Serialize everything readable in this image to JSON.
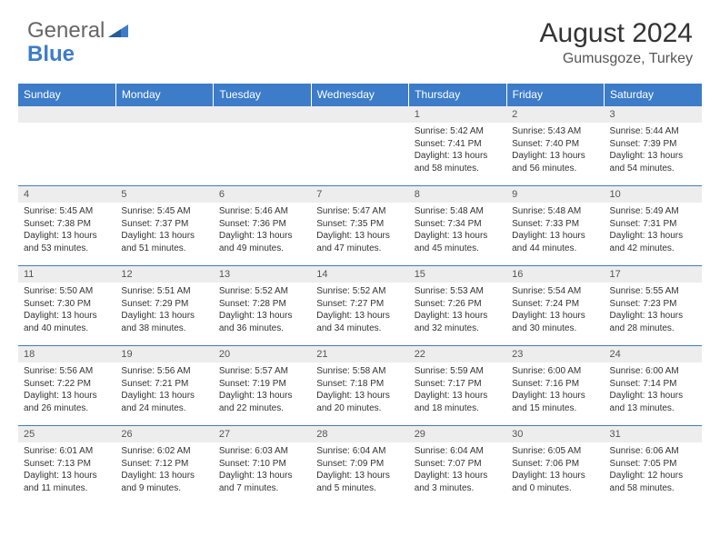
{
  "logo": {
    "general": "General",
    "blue": "Blue"
  },
  "title": "August 2024",
  "location": "Gumusgoze, Turkey",
  "colors": {
    "header_bg": "#3d7cc9",
    "header_text": "#ffffff",
    "daynum_bg": "#ededed",
    "text": "#333333",
    "border": "#3d7cc9",
    "logo_blue": "#3d7cc9",
    "logo_gray": "#666666"
  },
  "font": {
    "family": "Arial",
    "title_size": 30,
    "location_size": 16,
    "dayhead_size": 12,
    "daynum_size": 11,
    "body_size": 10
  },
  "day_headers": [
    "Sunday",
    "Monday",
    "Tuesday",
    "Wednesday",
    "Thursday",
    "Friday",
    "Saturday"
  ],
  "weeks": [
    [
      {
        "blank": true
      },
      {
        "blank": true
      },
      {
        "blank": true
      },
      {
        "blank": true
      },
      {
        "n": "1",
        "sr": "5:42 AM",
        "ss": "7:41 PM",
        "dl": "13 hours and 58 minutes."
      },
      {
        "n": "2",
        "sr": "5:43 AM",
        "ss": "7:40 PM",
        "dl": "13 hours and 56 minutes."
      },
      {
        "n": "3",
        "sr": "5:44 AM",
        "ss": "7:39 PM",
        "dl": "13 hours and 54 minutes."
      }
    ],
    [
      {
        "n": "4",
        "sr": "5:45 AM",
        "ss": "7:38 PM",
        "dl": "13 hours and 53 minutes."
      },
      {
        "n": "5",
        "sr": "5:45 AM",
        "ss": "7:37 PM",
        "dl": "13 hours and 51 minutes."
      },
      {
        "n": "6",
        "sr": "5:46 AM",
        "ss": "7:36 PM",
        "dl": "13 hours and 49 minutes."
      },
      {
        "n": "7",
        "sr": "5:47 AM",
        "ss": "7:35 PM",
        "dl": "13 hours and 47 minutes."
      },
      {
        "n": "8",
        "sr": "5:48 AM",
        "ss": "7:34 PM",
        "dl": "13 hours and 45 minutes."
      },
      {
        "n": "9",
        "sr": "5:48 AM",
        "ss": "7:33 PM",
        "dl": "13 hours and 44 minutes."
      },
      {
        "n": "10",
        "sr": "5:49 AM",
        "ss": "7:31 PM",
        "dl": "13 hours and 42 minutes."
      }
    ],
    [
      {
        "n": "11",
        "sr": "5:50 AM",
        "ss": "7:30 PM",
        "dl": "13 hours and 40 minutes."
      },
      {
        "n": "12",
        "sr": "5:51 AM",
        "ss": "7:29 PM",
        "dl": "13 hours and 38 minutes."
      },
      {
        "n": "13",
        "sr": "5:52 AM",
        "ss": "7:28 PM",
        "dl": "13 hours and 36 minutes."
      },
      {
        "n": "14",
        "sr": "5:52 AM",
        "ss": "7:27 PM",
        "dl": "13 hours and 34 minutes."
      },
      {
        "n": "15",
        "sr": "5:53 AM",
        "ss": "7:26 PM",
        "dl": "13 hours and 32 minutes."
      },
      {
        "n": "16",
        "sr": "5:54 AM",
        "ss": "7:24 PM",
        "dl": "13 hours and 30 minutes."
      },
      {
        "n": "17",
        "sr": "5:55 AM",
        "ss": "7:23 PM",
        "dl": "13 hours and 28 minutes."
      }
    ],
    [
      {
        "n": "18",
        "sr": "5:56 AM",
        "ss": "7:22 PM",
        "dl": "13 hours and 26 minutes."
      },
      {
        "n": "19",
        "sr": "5:56 AM",
        "ss": "7:21 PM",
        "dl": "13 hours and 24 minutes."
      },
      {
        "n": "20",
        "sr": "5:57 AM",
        "ss": "7:19 PM",
        "dl": "13 hours and 22 minutes."
      },
      {
        "n": "21",
        "sr": "5:58 AM",
        "ss": "7:18 PM",
        "dl": "13 hours and 20 minutes."
      },
      {
        "n": "22",
        "sr": "5:59 AM",
        "ss": "7:17 PM",
        "dl": "13 hours and 18 minutes."
      },
      {
        "n": "23",
        "sr": "6:00 AM",
        "ss": "7:16 PM",
        "dl": "13 hours and 15 minutes."
      },
      {
        "n": "24",
        "sr": "6:00 AM",
        "ss": "7:14 PM",
        "dl": "13 hours and 13 minutes."
      }
    ],
    [
      {
        "n": "25",
        "sr": "6:01 AM",
        "ss": "7:13 PM",
        "dl": "13 hours and 11 minutes."
      },
      {
        "n": "26",
        "sr": "6:02 AM",
        "ss": "7:12 PM",
        "dl": "13 hours and 9 minutes."
      },
      {
        "n": "27",
        "sr": "6:03 AM",
        "ss": "7:10 PM",
        "dl": "13 hours and 7 minutes."
      },
      {
        "n": "28",
        "sr": "6:04 AM",
        "ss": "7:09 PM",
        "dl": "13 hours and 5 minutes."
      },
      {
        "n": "29",
        "sr": "6:04 AM",
        "ss": "7:07 PM",
        "dl": "13 hours and 3 minutes."
      },
      {
        "n": "30",
        "sr": "6:05 AM",
        "ss": "7:06 PM",
        "dl": "13 hours and 0 minutes."
      },
      {
        "n": "31",
        "sr": "6:06 AM",
        "ss": "7:05 PM",
        "dl": "12 hours and 58 minutes."
      }
    ]
  ],
  "labels": {
    "sunrise": "Sunrise:",
    "sunset": "Sunset:",
    "daylight": "Daylight:"
  }
}
